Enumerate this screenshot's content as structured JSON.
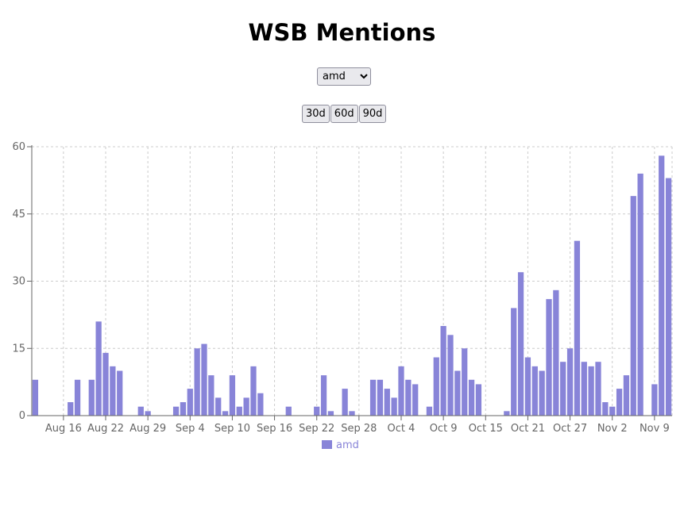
{
  "header": {
    "title": "WSB Mentions"
  },
  "controls": {
    "ticker_selected": "amd",
    "range_buttons": [
      "30d",
      "60d",
      "90d"
    ]
  },
  "colors": {
    "bar": "#8884d8",
    "grid": "#cccccc",
    "axis": "#666666"
  },
  "chart_data": {
    "type": "bar",
    "title": "WSB Mentions",
    "xlabel": "",
    "ylabel": "",
    "ylim": [
      0,
      60
    ],
    "yticks": [
      0,
      15,
      30,
      45,
      60
    ],
    "grid": true,
    "legend_position": "bottom-center",
    "x_tick_labels": [
      "Aug 16",
      "Aug 22",
      "Aug 29",
      "Sep 4",
      "Sep 10",
      "Sep 16",
      "Sep 22",
      "Sep 28",
      "Oct 4",
      "Oct 9",
      "Oct 15",
      "Oct 21",
      "Oct 27",
      "Nov 2",
      "Nov 9"
    ],
    "series": [
      {
        "name": "amd",
        "values": [
          8,
          0,
          0,
          0,
          0,
          3,
          8,
          0,
          8,
          21,
          14,
          11,
          10,
          0,
          0,
          2,
          1,
          0,
          0,
          0,
          2,
          3,
          6,
          15,
          16,
          9,
          4,
          1,
          9,
          2,
          4,
          11,
          5,
          0,
          0,
          0,
          2,
          0,
          0,
          0,
          2,
          9,
          1,
          0,
          6,
          1,
          0,
          0,
          8,
          8,
          6,
          4,
          11,
          8,
          7,
          0,
          2,
          13,
          20,
          18,
          10,
          15,
          8,
          7,
          0,
          0,
          0,
          1,
          24,
          32,
          13,
          11,
          10,
          26,
          28,
          12,
          15,
          39,
          12,
          11,
          12,
          3,
          2,
          6,
          9,
          49,
          54,
          0,
          7,
          58,
          53
        ]
      }
    ]
  }
}
